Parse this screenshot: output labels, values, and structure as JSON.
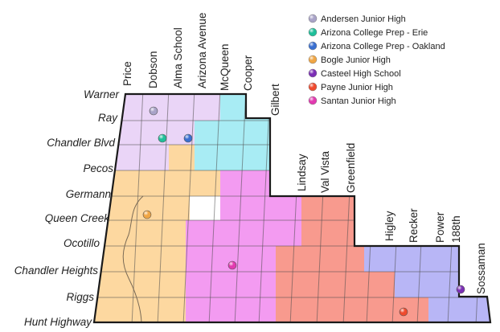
{
  "roads_ew": [
    "Warner",
    "Ray",
    "Chandler Blvd",
    "Pecos",
    "Germann",
    "Queen Creek",
    "Ocotillo",
    "Chandler Heights",
    "Riggs",
    "Hunt Highway"
  ],
  "roads_ns": [
    "Price",
    "Dobson",
    "Alma School",
    "Arizona Avenue",
    "McQueen",
    "Cooper",
    "Gilbert",
    "Lindsay",
    "Val Vista",
    "Greenfield",
    "Higley",
    "Recker",
    "Power",
    "188th",
    "Sossaman"
  ],
  "legend": [
    {
      "label": "Andersen Junior High",
      "color": "#a9a3c8"
    },
    {
      "label": "Arizona College Prep - Erie",
      "color": "#1fbf9a"
    },
    {
      "label": "Arizona College Prep - Oakland",
      "color": "#3a6fd0"
    },
    {
      "label": "Bogle Junior High",
      "color": "#f0a645"
    },
    {
      "label": "Casteel High School",
      "color": "#7b2fb5"
    },
    {
      "label": "Payne Junior High",
      "color": "#ef4a2e"
    },
    {
      "label": "Santan Junior High",
      "color": "#e23ab0"
    }
  ],
  "zone_colors": {
    "lavender": "#ead5f7",
    "cyan": "#a8ecf4",
    "orange": "#fdd8a0",
    "magenta": "#f39bf1",
    "red": "#f89a8e",
    "periwinkle": "#b8b6f6"
  }
}
